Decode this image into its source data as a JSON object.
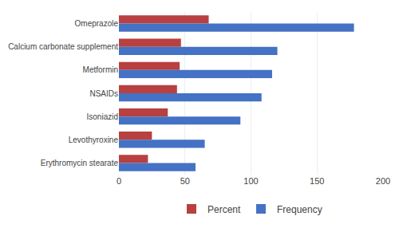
{
  "chart_data": {
    "type": "bar",
    "orientation": "horizontal",
    "categories": [
      "Erythromycin stearate",
      "Levothyroxine",
      "Isoniazid",
      "NSAIDs",
      "Metformin",
      "Calcium carbonate supplement",
      "Omeprazole"
    ],
    "series": [
      {
        "name": "Percent",
        "color": "#b94040",
        "values": [
          22,
          25,
          37,
          44,
          46,
          47,
          68
        ]
      },
      {
        "name": "Frequency",
        "color": "#4472c4",
        "values": [
          58,
          65,
          92,
          108,
          116,
          120,
          178
        ]
      }
    ],
    "xlim": [
      0,
      200
    ],
    "xticks": [
      0,
      50,
      100,
      150,
      200
    ],
    "grid": true,
    "legend": "bottom"
  }
}
